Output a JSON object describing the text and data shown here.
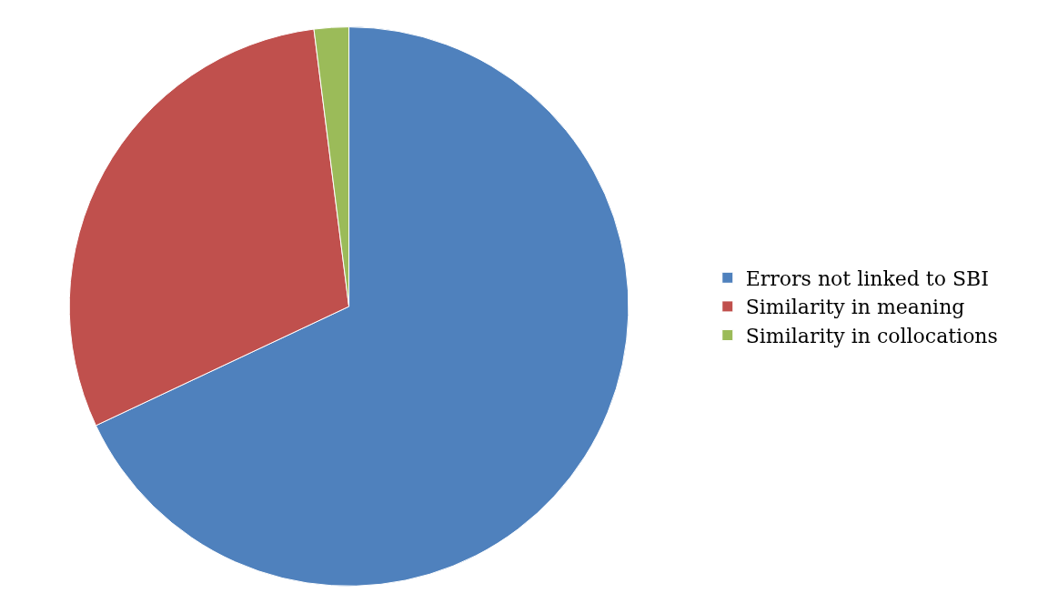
{
  "chart_data": {
    "type": "pie",
    "categories": [
      "Errors not linked to SBI",
      "Similarity in meaning",
      "Similarity in collocations"
    ],
    "values": [
      68,
      30,
      2
    ],
    "colors": [
      "#4f81bd",
      "#c0504d",
      "#9bbb59"
    ],
    "legend": "right"
  }
}
